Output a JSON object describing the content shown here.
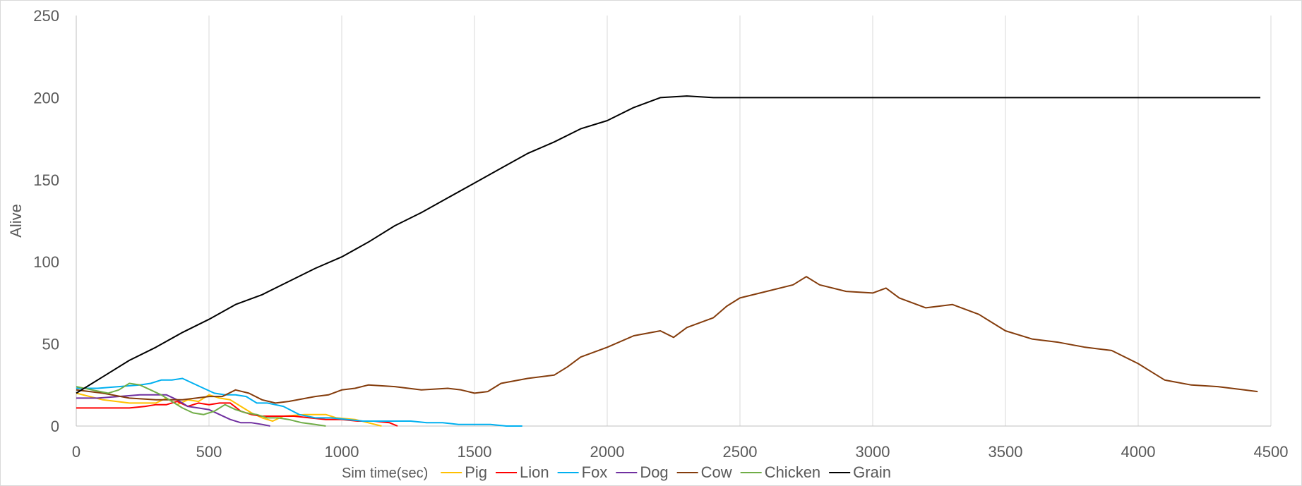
{
  "chart_data": {
    "type": "line",
    "title": "",
    "xlabel": "Sim time(sec)",
    "ylabel": "Alive",
    "xlim": [
      0,
      4500
    ],
    "ylim": [
      0,
      250
    ],
    "x_ticks": [
      0,
      500,
      1000,
      1500,
      2000,
      2500,
      3000,
      3500,
      4000,
      4500
    ],
    "y_ticks": [
      0,
      50,
      100,
      150,
      200,
      250
    ],
    "grid": "vertical",
    "legend_position": "bottom",
    "series": [
      {
        "name": "Pig",
        "color": "#ffc000",
        "x": [
          0,
          100,
          200,
          300,
          340,
          380,
          420,
          460,
          500,
          540,
          580,
          620,
          660,
          700,
          740,
          780,
          860,
          940,
          980,
          1050,
          1100,
          1150
        ],
        "y": [
          20,
          16,
          14,
          14,
          17,
          13,
          16,
          15,
          19,
          17,
          16,
          12,
          8,
          5,
          3,
          6,
          7,
          7,
          5,
          4,
          2,
          0
        ]
      },
      {
        "name": "Lion",
        "color": "#ff0000",
        "x": [
          0,
          100,
          200,
          260,
          300,
          340,
          380,
          420,
          460,
          500,
          540,
          580,
          620,
          660,
          700,
          760,
          820,
          880,
          940,
          1000,
          1060,
          1120,
          1180,
          1210
        ],
        "y": [
          11,
          11,
          11,
          12,
          13,
          13,
          15,
          12,
          14,
          13,
          14,
          14,
          9,
          7,
          6,
          6,
          6,
          5,
          4,
          4,
          3,
          3,
          2,
          0
        ]
      },
      {
        "name": "Fox",
        "color": "#00b0f0",
        "x": [
          0,
          80,
          160,
          240,
          280,
          320,
          360,
          400,
          440,
          480,
          520,
          560,
          600,
          640,
          680,
          720,
          780,
          840,
          900,
          960,
          1020,
          1080,
          1140,
          1200,
          1260,
          1320,
          1380,
          1440,
          1500,
          1560,
          1620,
          1680
        ],
        "y": [
          23,
          23,
          24,
          25,
          26,
          28,
          28,
          29,
          26,
          23,
          20,
          19,
          19,
          18,
          14,
          14,
          12,
          7,
          5,
          5,
          4,
          3,
          3,
          3,
          3,
          2,
          2,
          1,
          1,
          1,
          0,
          0
        ]
      },
      {
        "name": "Dog",
        "color": "#7030a0",
        "x": [
          0,
          80,
          160,
          240,
          300,
          340,
          380,
          420,
          460,
          500,
          540,
          580,
          620,
          660,
          700,
          730
        ],
        "y": [
          17,
          17,
          18,
          19,
          19,
          19,
          16,
          12,
          11,
          10,
          7,
          4,
          2,
          2,
          1,
          0
        ]
      },
      {
        "name": "Cow",
        "color": "#843c0c",
        "x": [
          0,
          100,
          200,
          300,
          400,
          500,
          550,
          600,
          650,
          700,
          750,
          800,
          900,
          950,
          1000,
          1050,
          1100,
          1200,
          1300,
          1400,
          1450,
          1500,
          1550,
          1600,
          1700,
          1800,
          1850,
          1900,
          2000,
          2100,
          2200,
          2250,
          2300,
          2400,
          2450,
          2500,
          2600,
          2700,
          2750,
          2800,
          2900,
          3000,
          3050,
          3100,
          3200,
          3300,
          3400,
          3500,
          3600,
          3700,
          3800,
          3850,
          3900,
          4000,
          4050,
          4100,
          4200,
          4300,
          4400,
          4450
        ],
        "y": [
          22,
          20,
          17,
          16,
          16,
          18,
          18,
          22,
          20,
          16,
          14,
          15,
          18,
          19,
          22,
          23,
          25,
          24,
          22,
          23,
          22,
          20,
          21,
          26,
          29,
          31,
          36,
          42,
          48,
          55,
          58,
          54,
          60,
          66,
          73,
          78,
          82,
          86,
          91,
          86,
          82,
          81,
          84,
          78,
          72,
          74,
          68,
          58,
          53,
          51,
          48,
          47,
          46,
          38,
          33,
          28,
          25,
          24,
          22,
          21
        ]
      },
      {
        "name": "Chicken",
        "color": "#70ad47",
        "x": [
          0,
          60,
          120,
          160,
          200,
          240,
          280,
          320,
          360,
          400,
          440,
          480,
          520,
          560,
          600,
          640,
          680,
          720,
          760,
          800,
          850,
          900,
          940
        ],
        "y": [
          24,
          22,
          20,
          22,
          26,
          25,
          22,
          19,
          15,
          11,
          8,
          7,
          9,
          13,
          10,
          8,
          7,
          5,
          5,
          4,
          2,
          1,
          0
        ]
      },
      {
        "name": "Grain",
        "color": "#000000",
        "x": [
          0,
          100,
          200,
          300,
          400,
          500,
          600,
          700,
          800,
          900,
          1000,
          1100,
          1200,
          1300,
          1400,
          1500,
          1600,
          1700,
          1800,
          1900,
          2000,
          2100,
          2150,
          2200,
          2300,
          2400,
          2500,
          2600,
          2700,
          2800,
          2900,
          3000,
          3100,
          3200,
          3300,
          3400,
          3500,
          3600,
          3700,
          3800,
          3900,
          4000,
          4100,
          4200,
          4300,
          4400,
          4460
        ],
        "y": [
          20,
          30,
          40,
          48,
          57,
          65,
          74,
          80,
          88,
          96,
          103,
          112,
          122,
          130,
          139,
          148,
          157,
          166,
          173,
          181,
          186,
          194,
          197,
          200,
          201,
          200,
          200,
          200,
          200,
          200,
          200,
          200,
          200,
          200,
          200,
          200,
          200,
          200,
          200,
          200,
          200,
          200,
          200,
          200,
          200,
          200,
          200
        ]
      }
    ]
  }
}
